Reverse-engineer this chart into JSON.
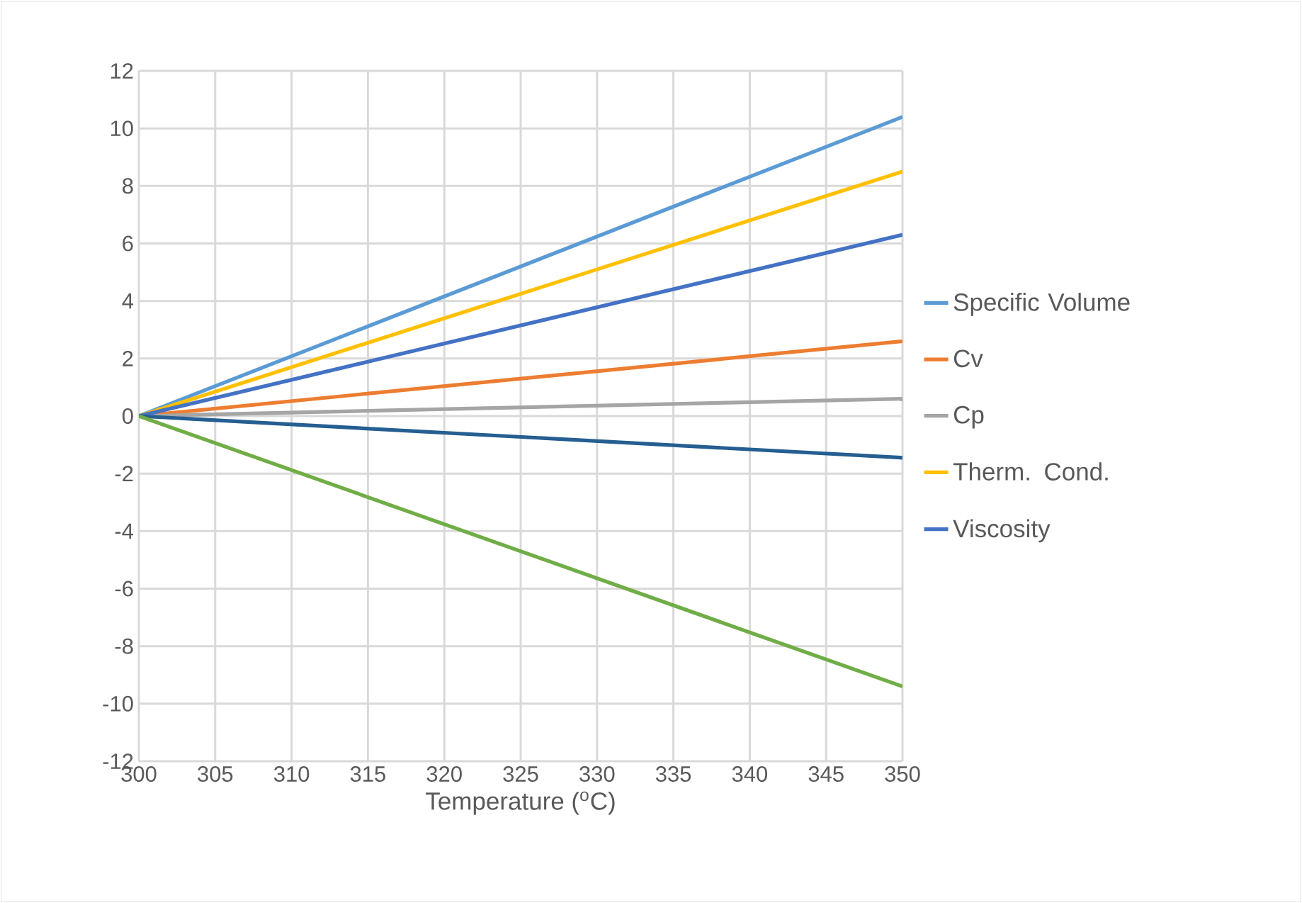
{
  "chart_data": {
    "type": "line",
    "xlabel": "Temperature ($^{o}$C)",
    "x": [
      300,
      350
    ],
    "xlim": [
      300,
      350
    ],
    "xticks": [
      300,
      305,
      310,
      315,
      320,
      325,
      330,
      335,
      340,
      345,
      350
    ],
    "ylim": [
      -12,
      12
    ],
    "yticks": [
      -12,
      -10,
      -8,
      -6,
      -4,
      -2,
      0,
      2,
      4,
      6,
      8,
      10,
      12
    ],
    "grid": true,
    "legend": "right",
    "marker": "none",
    "line_style": "solid",
    "series": [
      {
        "name": "Specific Volume",
        "color": "#5b9bd5",
        "values": [
          0,
          10.4
        ]
      },
      {
        "name": "Cv",
        "color": "#ed7d31",
        "values": [
          0,
          2.6
        ]
      },
      {
        "name": "Cp",
        "color": "#a5a5a5",
        "values": [
          0,
          0.6
        ]
      },
      {
        "name": "Therm. Cond.",
        "color": "#ffc000",
        "values": [
          0,
          8.5
        ]
      },
      {
        "name": "Viscosity",
        "color": "#4472c4",
        "values": [
          0,
          6.3
        ]
      },
      {
        "color": "#255e91",
        "values": [
          0,
          -1.45
        ]
      },
      {
        "color": "#70ad47",
        "values": [
          0,
          -9.4
        ]
      }
    ]
  }
}
